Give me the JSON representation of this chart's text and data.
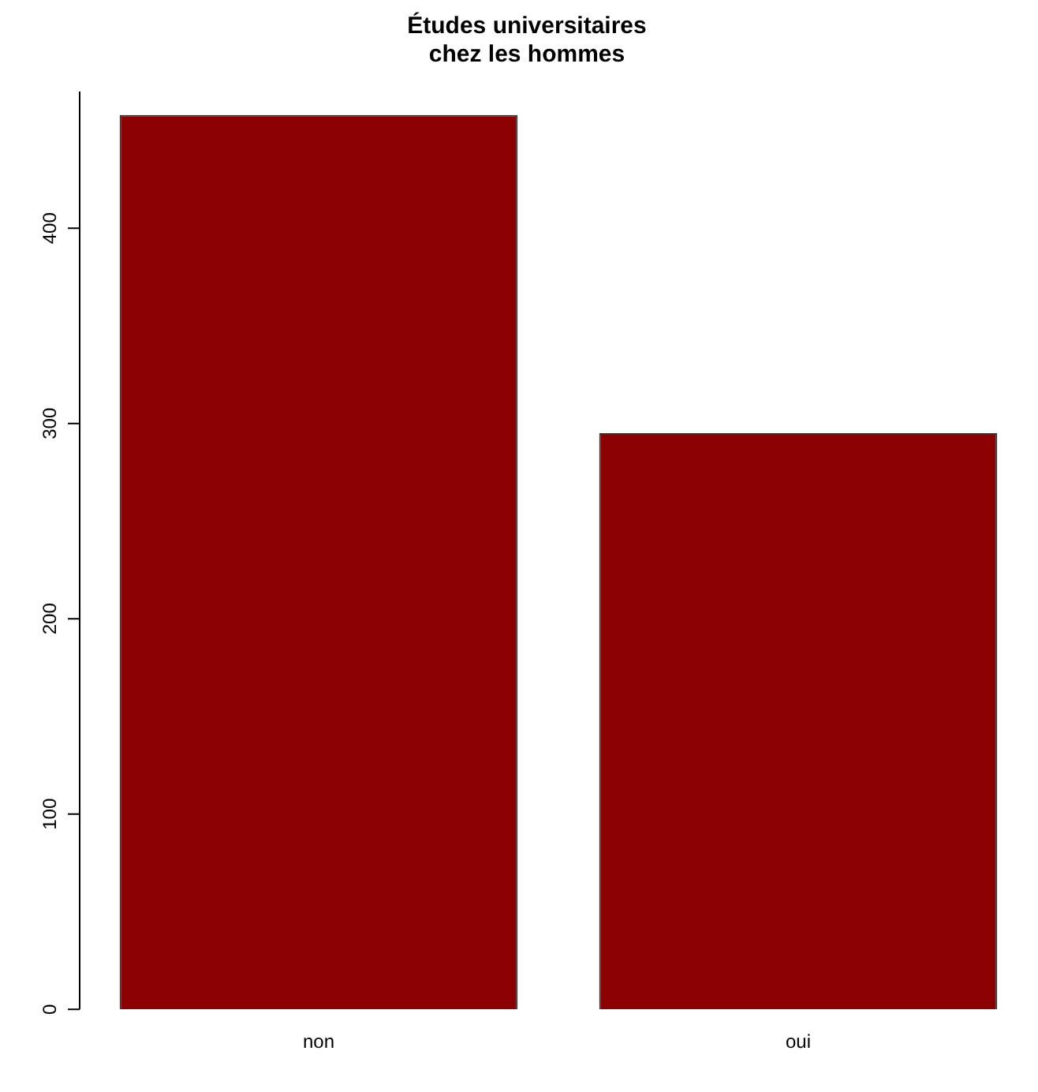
{
  "chart_data": {
    "type": "bar",
    "title": "Études universitaires\nchez les hommes",
    "categories": [
      "non",
      "oui"
    ],
    "values": [
      458,
      295
    ],
    "color": "#8b0000",
    "ylim": [
      0,
      470
    ],
    "yticks": [
      0,
      100,
      200,
      300,
      400
    ],
    "grid": false,
    "legend": false
  }
}
